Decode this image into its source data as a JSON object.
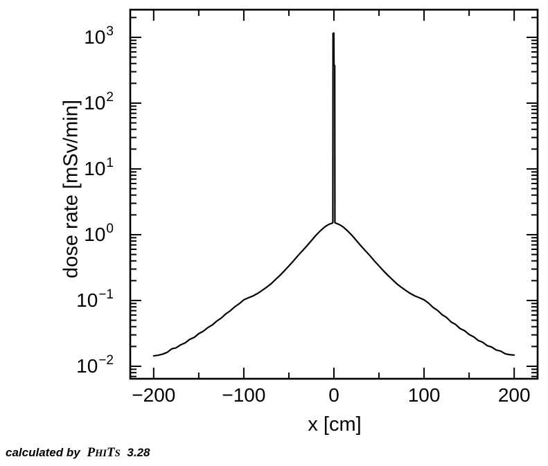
{
  "page": {
    "background": "#ffffff",
    "ink": "#000000"
  },
  "footer": {
    "prefix": "calculated by",
    "phits_p1": "P",
    "phits_p2": "HI",
    "phits_p3": "T",
    "phits_p4": "S",
    "version": "3.28"
  },
  "chart_data": {
    "type": "line",
    "title": "",
    "xlabel": "x [cm]",
    "ylabel": "dose rate [mSv/min]",
    "x_unit": "cm",
    "y_unit": "mSv/min",
    "y_scale": "log",
    "grid": false,
    "legend": "none",
    "line_color": "#000000",
    "xlim": [
      -226,
      226
    ],
    "ylim": [
      0.00646,
      2630
    ],
    "x_major_ticks": [
      -200,
      -100,
      0,
      100,
      200
    ],
    "x_minor_ticks": [
      -150,
      -50,
      50,
      150
    ],
    "x_tick_labels": [
      "−200",
      "−100",
      "0",
      "100",
      "200"
    ],
    "y_major_ticks_log10": [
      3,
      2,
      1,
      0,
      -1,
      -2
    ],
    "y_tick_labels": [
      {
        "base": "10",
        "exp": "3",
        "exp_value": 3
      },
      {
        "base": "10",
        "exp": "2",
        "exp_value": 2
      },
      {
        "base": "10",
        "exp": "1",
        "exp_value": 1
      },
      {
        "base": "10",
        "exp": "0",
        "exp_value": 0
      },
      {
        "base": "10",
        "exp": "−1",
        "exp_value": -1
      },
      {
        "base": "10",
        "exp": "−2",
        "exp_value": -2
      }
    ],
    "series": [
      {
        "name": "dose rate",
        "color": "#000000",
        "peak_value": 1160,
        "points": [
          [
            -200,
            0.0144
          ],
          [
            -195,
            0.0147
          ],
          [
            -190,
            0.0153
          ],
          [
            -185,
            0.0163
          ],
          [
            -180,
            0.0184
          ],
          [
            -175,
            0.0191
          ],
          [
            -170,
            0.0212
          ],
          [
            -165,
            0.0227
          ],
          [
            -160,
            0.0256
          ],
          [
            -155,
            0.0275
          ],
          [
            -150,
            0.0313
          ],
          [
            -145,
            0.0341
          ],
          [
            -140,
            0.0386
          ],
          [
            -135,
            0.0424
          ],
          [
            -130,
            0.0486
          ],
          [
            -125,
            0.0541
          ],
          [
            -120,
            0.0625
          ],
          [
            -115,
            0.0697
          ],
          [
            -110,
            0.0801
          ],
          [
            -105,
            0.0895
          ],
          [
            -100,
            0.1022
          ],
          [
            -95,
            0.1098
          ],
          [
            -90,
            0.1169
          ],
          [
            -85,
            0.1272
          ],
          [
            -80,
            0.1411
          ],
          [
            -75,
            0.158
          ],
          [
            -70,
            0.178
          ],
          [
            -65,
            0.207
          ],
          [
            -60,
            0.24
          ],
          [
            -55,
            0.282
          ],
          [
            -50,
            0.335
          ],
          [
            -45,
            0.398
          ],
          [
            -40,
            0.479
          ],
          [
            -35,
            0.569
          ],
          [
            -30,
            0.676
          ],
          [
            -25,
            0.813
          ],
          [
            -20,
            0.977
          ],
          [
            -15,
            1.148
          ],
          [
            -10,
            1.318
          ],
          [
            -7,
            1.4
          ],
          [
            -5,
            1.445
          ],
          [
            -3,
            1.48
          ],
          [
            -2,
            1.5
          ],
          [
            -1.2,
            1.52
          ],
          [
            -1.0,
            1150
          ],
          [
            -0.1,
            1160
          ],
          [
            0.1,
            380
          ],
          [
            0.9,
            372
          ],
          [
            1.1,
            1.52
          ],
          [
            2,
            1.5
          ],
          [
            3,
            1.48
          ],
          [
            5,
            1.445
          ],
          [
            7,
            1.4
          ],
          [
            10,
            1.318
          ],
          [
            15,
            1.148
          ],
          [
            20,
            0.977
          ],
          [
            25,
            0.813
          ],
          [
            30,
            0.676
          ],
          [
            35,
            0.569
          ],
          [
            40,
            0.479
          ],
          [
            45,
            0.398
          ],
          [
            50,
            0.335
          ],
          [
            55,
            0.282
          ],
          [
            60,
            0.24
          ],
          [
            65,
            0.207
          ],
          [
            70,
            0.178
          ],
          [
            75,
            0.158
          ],
          [
            80,
            0.1411
          ],
          [
            85,
            0.1272
          ],
          [
            90,
            0.1169
          ],
          [
            95,
            0.1098
          ],
          [
            100,
            0.1022
          ],
          [
            105,
            0.0912
          ],
          [
            110,
            0.0785
          ],
          [
            115,
            0.0706
          ],
          [
            120,
            0.0609
          ],
          [
            125,
            0.0551
          ],
          [
            130,
            0.0471
          ],
          [
            135,
            0.0432
          ],
          [
            140,
            0.0374
          ],
          [
            145,
            0.0347
          ],
          [
            150,
            0.0304
          ],
          [
            155,
            0.0281
          ],
          [
            160,
            0.0247
          ],
          [
            165,
            0.0232
          ],
          [
            170,
            0.0206
          ],
          [
            175,
            0.0196
          ],
          [
            180,
            0.0177
          ],
          [
            185,
            0.017
          ],
          [
            190,
            0.0155
          ],
          [
            195,
            0.015
          ],
          [
            200,
            0.0148
          ]
        ]
      }
    ]
  }
}
